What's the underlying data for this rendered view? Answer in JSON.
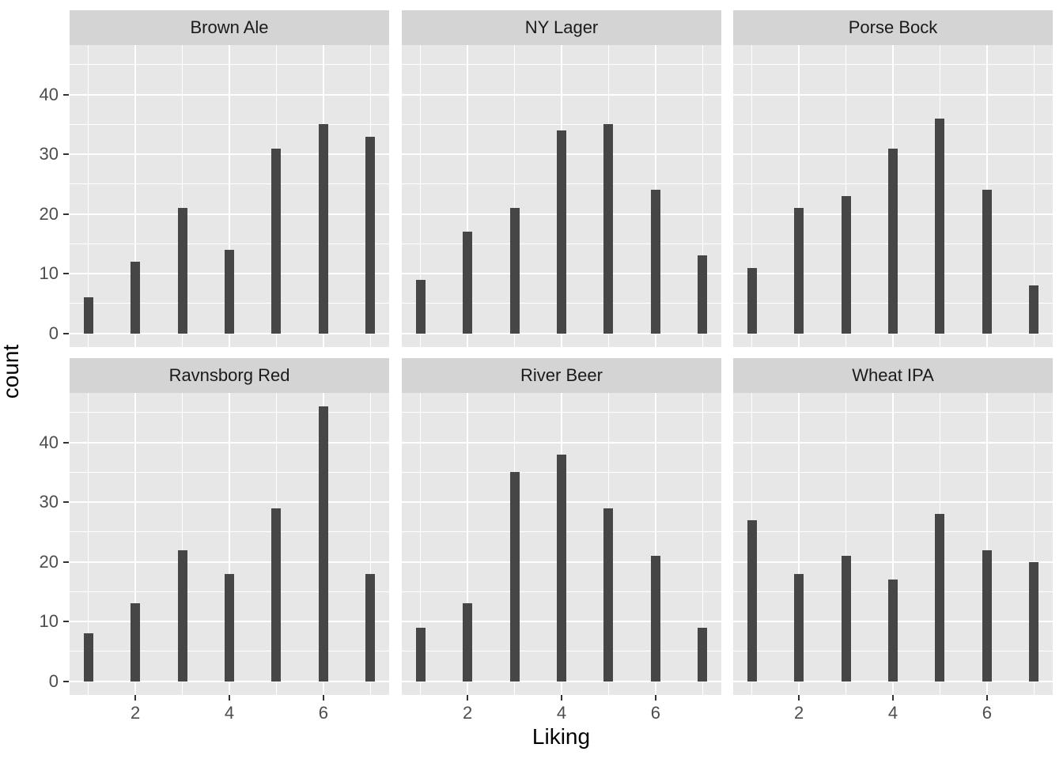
{
  "chart_data": {
    "type": "bar",
    "title": "",
    "xlabel": "Liking",
    "ylabel": "count",
    "facet_layout": "2 rows x 3 columns",
    "x": [
      1,
      2,
      3,
      4,
      5,
      6,
      7
    ],
    "facets": [
      {
        "label": "Brown Ale",
        "values": [
          6,
          12,
          21,
          14,
          31,
          35,
          33
        ]
      },
      {
        "label": "NY Lager",
        "values": [
          9,
          17,
          21,
          34,
          35,
          24,
          13
        ]
      },
      {
        "label": "Porse Bock",
        "values": [
          11,
          21,
          23,
          31,
          36,
          24,
          8
        ]
      },
      {
        "label": "Ravnsborg Red",
        "values": [
          8,
          13,
          22,
          18,
          29,
          46,
          18
        ]
      },
      {
        "label": "River Beer",
        "values": [
          9,
          13,
          35,
          38,
          29,
          21,
          9
        ]
      },
      {
        "label": "Wheat IPA",
        "values": [
          27,
          18,
          21,
          17,
          28,
          22,
          20
        ]
      }
    ],
    "x_ticks": [
      2,
      4,
      6
    ],
    "x_minor": [
      1,
      3,
      5,
      7
    ],
    "y_ticks": [
      0,
      10,
      20,
      30,
      40
    ],
    "y_minor": [
      5,
      15,
      25,
      35,
      45
    ],
    "xlim": [
      0.6,
      7.4
    ],
    "ylim": [
      -2.3,
      48.3
    ],
    "grid": "white major/minor on gray panel",
    "legend": "none",
    "colors": {
      "bar": "#464646",
      "panel_bg": "#E7E7E7",
      "strip_bg": "#D4D4D4",
      "grid": "#FFFFFF",
      "tick_text": "#4D4D4D",
      "strip_text": "#1A1A1A",
      "tick_mark": "#333333"
    }
  }
}
